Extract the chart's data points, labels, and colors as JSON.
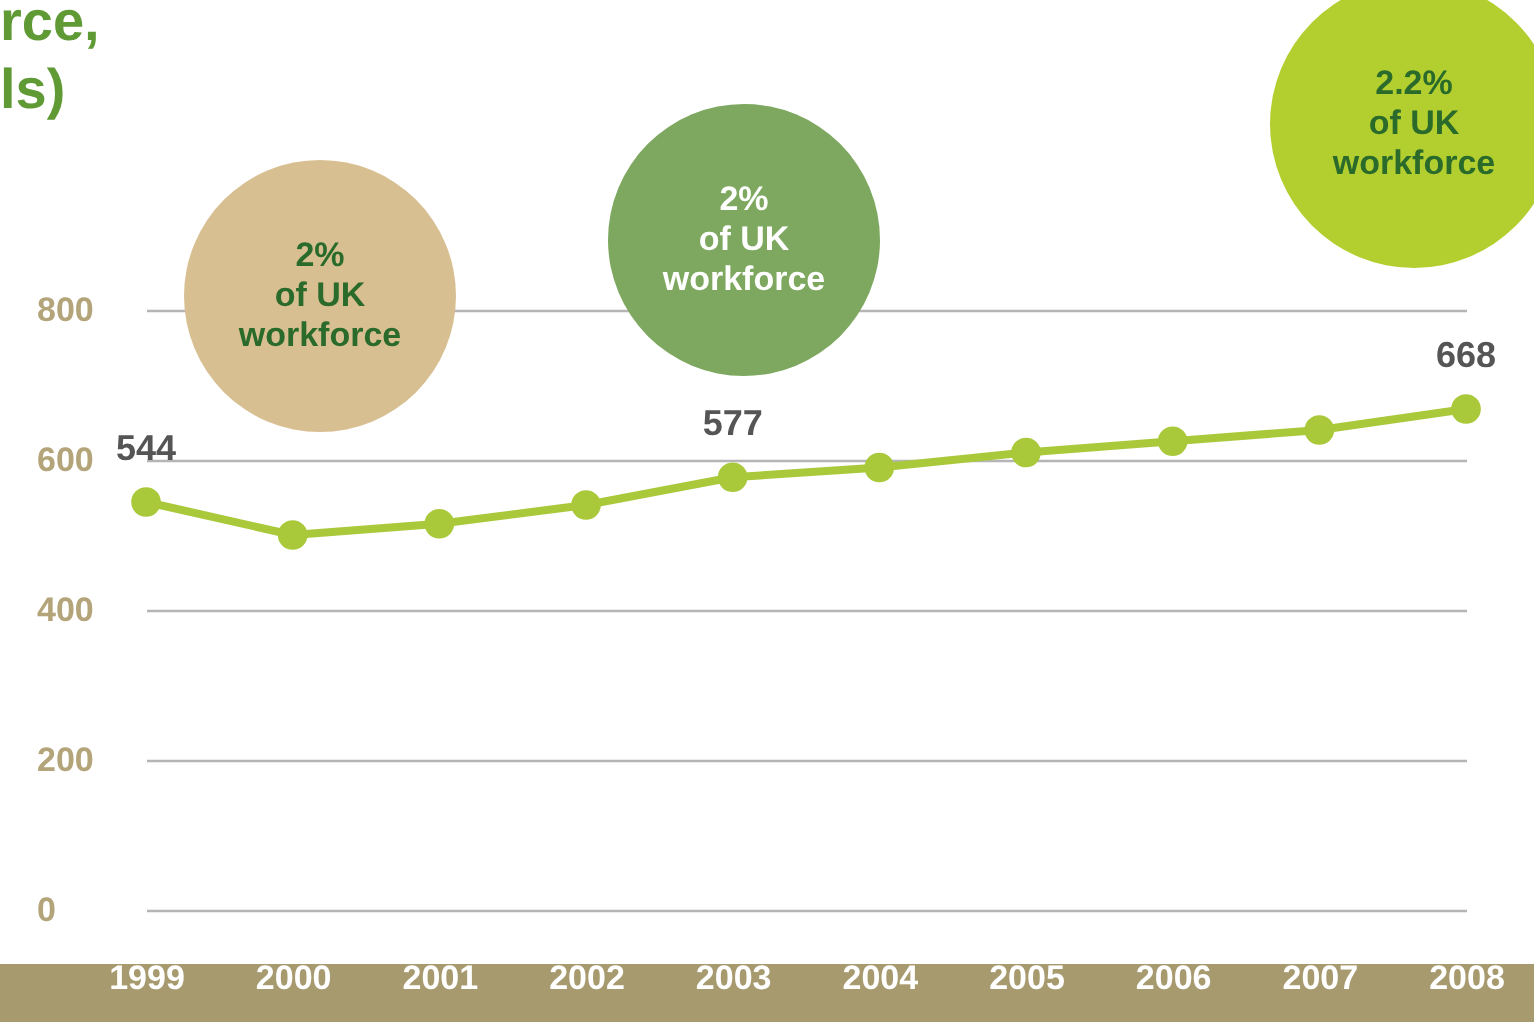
{
  "chart_data": {
    "type": "line",
    "title": "rce,\nls)",
    "categories": [
      "1999",
      "2000",
      "2001",
      "2002",
      "2003",
      "2004",
      "2005",
      "2006",
      "2007",
      "2008"
    ],
    "values": [
      544,
      500,
      515,
      540,
      577,
      590,
      610,
      625,
      640,
      668
    ],
    "value_labels": [
      "544",
      null,
      null,
      null,
      "577",
      null,
      null,
      null,
      null,
      "668"
    ],
    "color": "#a9c93a",
    "marker": "circle",
    "ylim": [
      0,
      800
    ],
    "yticks": [
      0,
      200,
      400,
      600,
      800
    ],
    "grid": "y",
    "annotations": [
      "2%\nof UK\nworkforce",
      "2%\nof UK\nworkforce",
      "2.2%\nof UK\nworkforce"
    ]
  }
}
